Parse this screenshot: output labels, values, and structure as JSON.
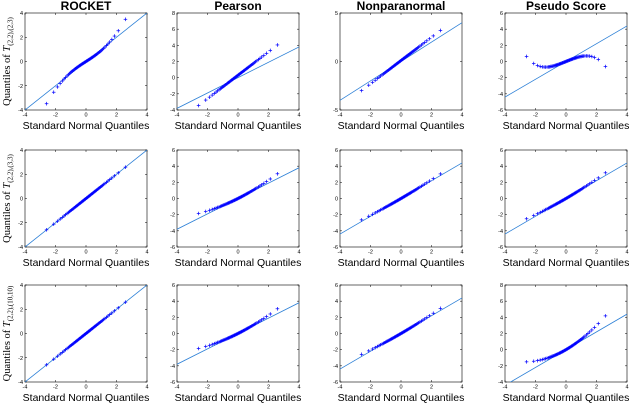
{
  "columns": [
    "ROCKET",
    "Pearson",
    "Nonparanormal",
    "Pseudo Score"
  ],
  "row_ylabels": [
    {
      "text": "Quantiles of ",
      "sym": "T",
      "sub": "(2,2),(2,3)"
    },
    {
      "text": "Quantiles of ",
      "sym": "T",
      "sub": "(2,2),(3,3)"
    },
    {
      "text": "Quantiles of ",
      "sym": "T",
      "sub": "(2,2),(10,10)"
    }
  ],
  "x_axis_label": "Standard Normal Quantiles",
  "colors": {
    "points": "#0000ff",
    "reference_line": "#2b7fd6",
    "axes": "#000000"
  },
  "chart_data": [
    {
      "type": "scatter",
      "row": 0,
      "col": 0,
      "title": "ROCKET",
      "xlim": [
        -4,
        4
      ],
      "ylim": [
        -4,
        4
      ],
      "xticks": [
        -4,
        -2,
        0,
        2,
        4
      ],
      "yticks": [
        -4,
        -2,
        0,
        2,
        4
      ],
      "ref_slope": 1.0,
      "ref_intercept": 0.0,
      "dev": {
        "a": 0,
        "b": 0,
        "c": 0.05,
        "q": 0
      },
      "marker": "+"
    },
    {
      "type": "scatter",
      "row": 0,
      "col": 1,
      "title": "Pearson",
      "xlim": [
        -4,
        4
      ],
      "ylim": [
        -4,
        8
      ],
      "xticks": [
        -4,
        -2,
        0,
        2,
        4
      ],
      "yticks": [
        -4,
        -2,
        0,
        2,
        4,
        6,
        8
      ],
      "ref_slope": 0.95,
      "ref_intercept": 0.0,
      "dev": {
        "a": 0.3,
        "b": 0.5,
        "c": 0,
        "q": 0
      },
      "marker": "+"
    },
    {
      "type": "scatter",
      "row": 0,
      "col": 2,
      "title": "Nonparanormal",
      "xlim": [
        -4,
        4
      ],
      "ylim": [
        -5,
        5
      ],
      "xticks": [
        -4,
        -2,
        0,
        2,
        4
      ],
      "yticks": [
        -5,
        0,
        5
      ],
      "ref_slope": 1.0,
      "ref_intercept": 0.0,
      "dev": {
        "a": 0.1,
        "b": 0.2,
        "c": 0,
        "q": 0
      },
      "marker": "+"
    },
    {
      "type": "scatter",
      "row": 0,
      "col": 3,
      "title": "Pseudo Score",
      "xlim": [
        -4,
        4
      ],
      "ylim": [
        -6,
        6
      ],
      "xticks": [
        -4,
        -2,
        0,
        2,
        4
      ],
      "yticks": [
        -6,
        -4,
        -2,
        0,
        2,
        4,
        6
      ],
      "ref_slope": 1.1,
      "ref_intercept": 0.0,
      "dev": {
        "a": 0,
        "b": -0.15,
        "c": -0.18,
        "q": 0
      },
      "marker": "+"
    },
    {
      "type": "scatter",
      "row": 1,
      "col": 0,
      "title": "",
      "xlim": [
        -4,
        4
      ],
      "ylim": [
        -4,
        4
      ],
      "xticks": [
        -4,
        -2,
        0,
        2,
        4
      ],
      "yticks": [
        -4,
        -2,
        0,
        2,
        4
      ],
      "ref_slope": 1.0,
      "ref_intercept": 0.0,
      "dev": {
        "a": 0,
        "b": 0,
        "c": 0,
        "q": 0
      },
      "marker": "+"
    },
    {
      "type": "scatter",
      "row": 1,
      "col": 1,
      "title": "",
      "xlim": [
        -4,
        4
      ],
      "ylim": [
        -6,
        6
      ],
      "xticks": [
        -4,
        -2,
        0,
        2,
        4
      ],
      "yticks": [
        -6,
        -4,
        -2,
        0,
        2,
        4,
        6
      ],
      "ref_slope": 0.95,
      "ref_intercept": 0.0,
      "dev": {
        "a": 0,
        "b": 0,
        "c": 0,
        "q": 0.09
      },
      "marker": "+"
    },
    {
      "type": "scatter",
      "row": 1,
      "col": 2,
      "title": "",
      "xlim": [
        -4,
        4
      ],
      "ylim": [
        -6,
        6
      ],
      "xticks": [
        -4,
        -2,
        0,
        2,
        4
      ],
      "yticks": [
        -6,
        -4,
        -2,
        0,
        2,
        4,
        6
      ],
      "ref_slope": 1.1,
      "ref_intercept": 0.0,
      "dev": {
        "a": 0,
        "b": 0,
        "c": 0,
        "q": 0.03
      },
      "marker": "+"
    },
    {
      "type": "scatter",
      "row": 1,
      "col": 3,
      "title": "",
      "xlim": [
        -4,
        4
      ],
      "ylim": [
        -6,
        6
      ],
      "xticks": [
        -4,
        -2,
        0,
        2,
        4
      ],
      "yticks": [
        -6,
        -4,
        -2,
        0,
        2,
        4,
        6
      ],
      "ref_slope": 1.1,
      "ref_intercept": 0.0,
      "dev": {
        "a": 0,
        "b": 0,
        "c": 0,
        "q": 0.05
      },
      "marker": "+"
    },
    {
      "type": "scatter",
      "row": 2,
      "col": 0,
      "title": "",
      "xlim": [
        -4,
        4
      ],
      "ylim": [
        -4,
        4
      ],
      "xticks": [
        -4,
        -2,
        0,
        2,
        4
      ],
      "yticks": [
        -4,
        -2,
        0,
        2,
        4
      ],
      "ref_slope": 1.0,
      "ref_intercept": 0.0,
      "dev": {
        "a": 0,
        "b": 0,
        "c": 0,
        "q": 0
      },
      "marker": "+"
    },
    {
      "type": "scatter",
      "row": 2,
      "col": 1,
      "title": "",
      "xlim": [
        -4,
        4
      ],
      "ylim": [
        -6,
        6
      ],
      "xticks": [
        -4,
        -2,
        0,
        2,
        4
      ],
      "yticks": [
        -6,
        -4,
        -2,
        0,
        2,
        4,
        6
      ],
      "ref_slope": 0.95,
      "ref_intercept": 0.0,
      "dev": {
        "a": 0,
        "b": 0,
        "c": 0,
        "q": 0.09
      },
      "marker": "+"
    },
    {
      "type": "scatter",
      "row": 2,
      "col": 2,
      "title": "",
      "xlim": [
        -4,
        4
      ],
      "ylim": [
        -6,
        6
      ],
      "xticks": [
        -4,
        -2,
        0,
        2,
        4
      ],
      "yticks": [
        -6,
        -4,
        -2,
        0,
        2,
        4,
        6
      ],
      "ref_slope": 1.1,
      "ref_intercept": 0.0,
      "dev": {
        "a": 0,
        "b": 0,
        "c": 0,
        "q": 0.04
      },
      "marker": "+"
    },
    {
      "type": "scatter",
      "row": 2,
      "col": 3,
      "title": "",
      "xlim": [
        -4,
        4
      ],
      "ylim": [
        -4,
        8
      ],
      "xticks": [
        -4,
        -2,
        0,
        2,
        4
      ],
      "yticks": [
        -4,
        -2,
        0,
        2,
        4,
        6,
        8
      ],
      "ref_slope": 1.1,
      "ref_intercept": 0.0,
      "dev": {
        "a": 0,
        "b": 0,
        "c": 0,
        "q": 0.2
      },
      "marker": "+"
    }
  ]
}
